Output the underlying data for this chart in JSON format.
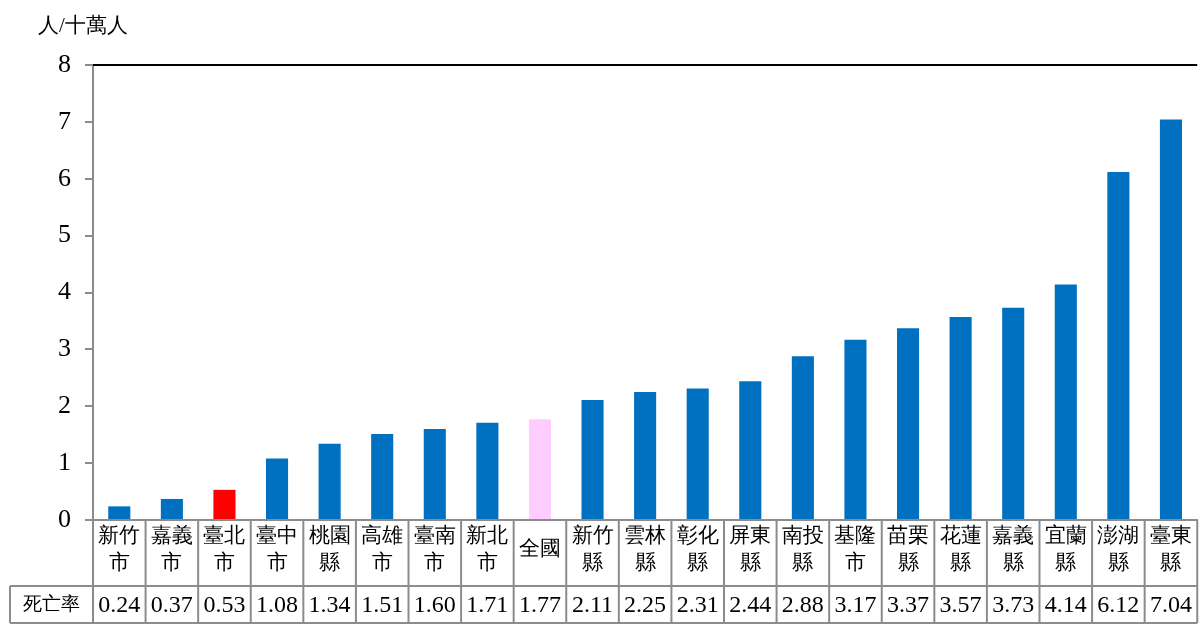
{
  "chart_data": {
    "type": "bar",
    "ylabel": "人/十萬人",
    "categories": [
      "新竹市",
      "嘉義市",
      "臺北市",
      "臺中市",
      "桃園縣",
      "高雄市",
      "臺南市",
      "新北市",
      "全國",
      "新竹縣",
      "雲林縣",
      "彰化縣",
      "屏東縣",
      "南投縣",
      "基隆市",
      "苗栗縣",
      "花蓮縣",
      "嘉義縣",
      "宜蘭縣",
      "澎湖縣",
      "臺東縣"
    ],
    "values": [
      0.24,
      0.37,
      0.53,
      1.08,
      1.34,
      1.51,
      1.6,
      1.71,
      1.77,
      2.11,
      2.25,
      2.31,
      2.44,
      2.88,
      3.17,
      3.37,
      3.57,
      3.73,
      4.14,
      6.12,
      7.04
    ],
    "colors": [
      "#0070c0",
      "#0070c0",
      "#ff0000",
      "#0070c0",
      "#0070c0",
      "#0070c0",
      "#0070c0",
      "#0070c0",
      "#ffccff",
      "#0070c0",
      "#0070c0",
      "#0070c0",
      "#0070c0",
      "#0070c0",
      "#0070c0",
      "#0070c0",
      "#0070c0",
      "#0070c0",
      "#0070c0",
      "#0070c0",
      "#0070c0"
    ],
    "value_labels": [
      "0.24",
      "0.37",
      "0.53",
      "1.08",
      "1.34",
      "1.51",
      "1.60",
      "1.71",
      "1.77",
      "2.11",
      "2.25",
      "2.31",
      "2.44",
      "2.88",
      "3.17",
      "3.37",
      "3.57",
      "3.73",
      "4.14",
      "6.12",
      "7.04"
    ],
    "ylim": [
      0,
      8
    ],
    "yticks": [
      0,
      1,
      2,
      3,
      4,
      5,
      6,
      7,
      8
    ],
    "grid": false,
    "legend": false,
    "annotations": [
      "死亡率"
    ]
  }
}
